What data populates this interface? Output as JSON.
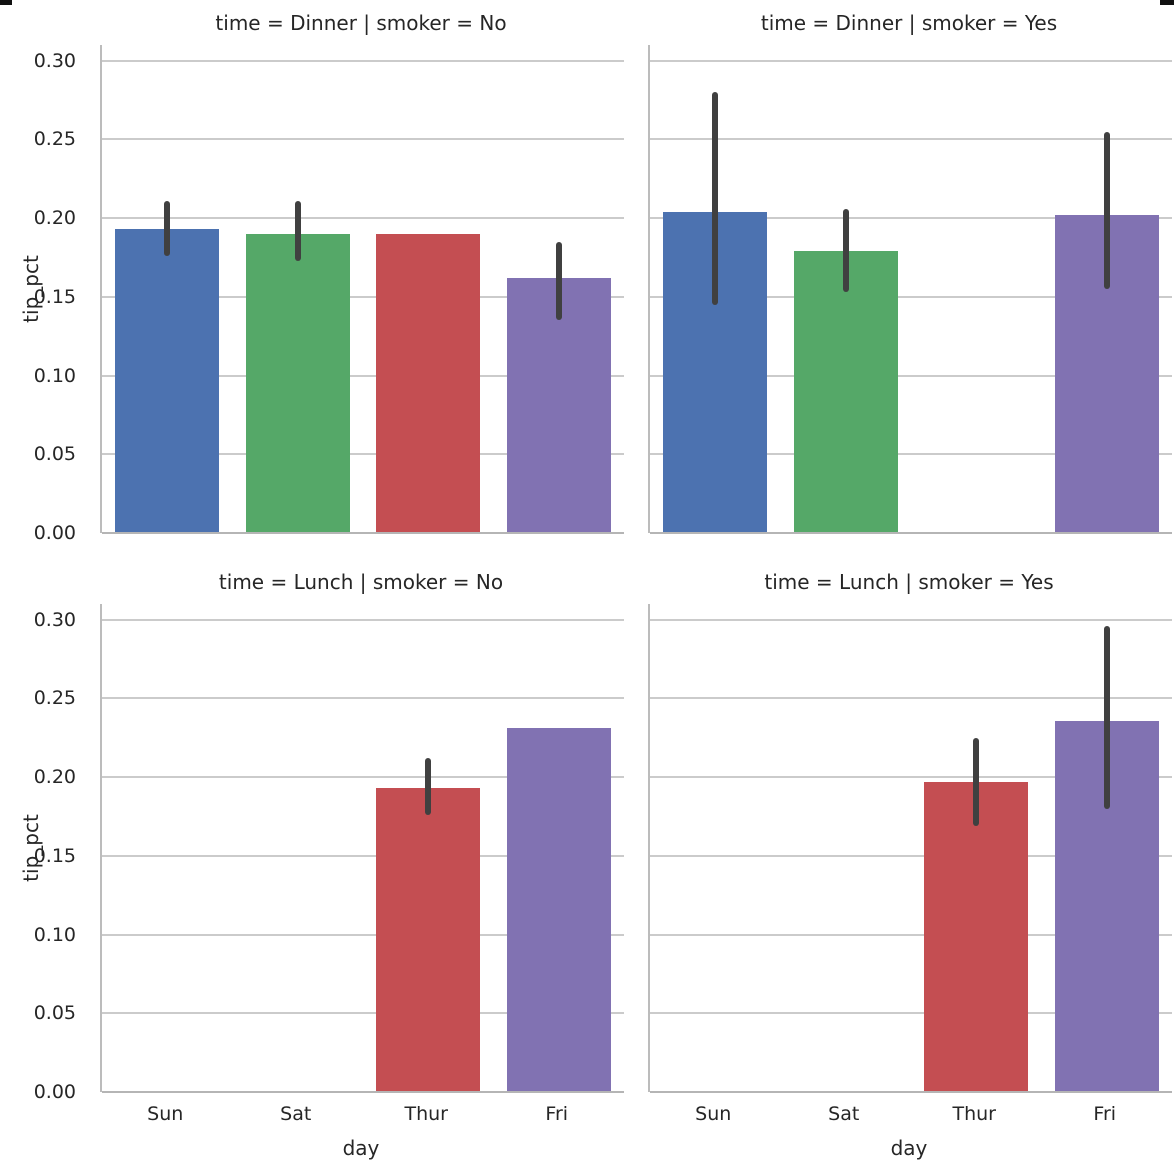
{
  "figure": {
    "background": "#ffffff",
    "text_color": "#262626",
    "grid_color": "#cbcbcb",
    "spine_color": "#b5b5b5"
  },
  "chart_data": {
    "type": "bar",
    "facet_layout": "2x2 grid; rows = time (Dinner, Lunch), cols = smoker (No, Yes)",
    "categories": [
      "Sun",
      "Sat",
      "Thur",
      "Fri"
    ],
    "xlabel": "day",
    "ylabel": "tip_pct",
    "ylim": [
      0,
      0.31
    ],
    "yticks": [
      "0.30",
      "0.25",
      "0.20",
      "0.15",
      "0.10",
      "0.05",
      "0.00"
    ],
    "grid": true,
    "legend": "none",
    "palette": {
      "Sun": "#4C72B0",
      "Sat": "#55A868",
      "Thur": "#C44E52",
      "Fri": "#8172B2"
    },
    "errorbar_color": "#404040",
    "panels": [
      {
        "title": "time = Dinner | smoker = No",
        "bars": [
          {
            "day": "Sun",
            "value": 0.193,
            "err_lo": 0.176,
            "err_hi": 0.211
          },
          {
            "day": "Sat",
            "value": 0.19,
            "err_lo": 0.173,
            "err_hi": 0.211
          },
          {
            "day": "Thur",
            "value": 0.19,
            "err_lo": null,
            "err_hi": null
          },
          {
            "day": "Fri",
            "value": 0.162,
            "err_lo": 0.135,
            "err_hi": 0.185
          }
        ]
      },
      {
        "title": "time = Dinner | smoker = Yes",
        "bars": [
          {
            "day": "Sun",
            "value": 0.204,
            "err_lo": 0.145,
            "err_hi": 0.28
          },
          {
            "day": "Sat",
            "value": 0.179,
            "err_lo": 0.153,
            "err_hi": 0.206
          },
          {
            "day": "Thur",
            "value": null,
            "err_lo": null,
            "err_hi": null
          },
          {
            "day": "Fri",
            "value": 0.202,
            "err_lo": 0.155,
            "err_hi": 0.255
          }
        ]
      },
      {
        "title": "time = Lunch | smoker = No",
        "bars": [
          {
            "day": "Sun",
            "value": null,
            "err_lo": null,
            "err_hi": null
          },
          {
            "day": "Sat",
            "value": null,
            "err_lo": null,
            "err_hi": null
          },
          {
            "day": "Thur",
            "value": 0.193,
            "err_lo": 0.176,
            "err_hi": 0.212
          },
          {
            "day": "Fri",
            "value": 0.231,
            "err_lo": null,
            "err_hi": null
          }
        ]
      },
      {
        "title": "time = Lunch | smoker = Yes",
        "bars": [
          {
            "day": "Sun",
            "value": null,
            "err_lo": null,
            "err_hi": null
          },
          {
            "day": "Sat",
            "value": null,
            "err_lo": null,
            "err_hi": null
          },
          {
            "day": "Thur",
            "value": 0.197,
            "err_lo": 0.169,
            "err_hi": 0.225
          },
          {
            "day": "Fri",
            "value": 0.236,
            "err_lo": 0.18,
            "err_hi": 0.296
          }
        ]
      }
    ]
  }
}
